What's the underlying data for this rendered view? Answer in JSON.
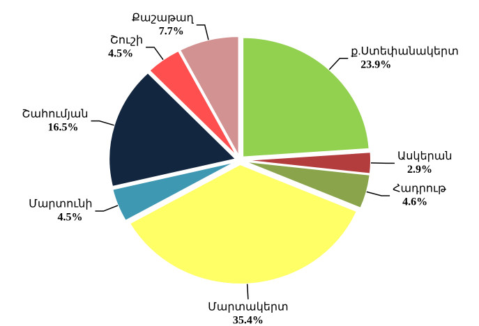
{
  "chart_data": {
    "type": "pie",
    "categories": [
      "ք.Ստեփանակերտ",
      "Ասկերան",
      "Հադրութ",
      "Մարտակերտ",
      "Մարտունի",
      "Շահումյան",
      "Շուշի",
      "Քաշաթաղ"
    ],
    "values": [
      23.9,
      2.9,
      4.6,
      35.4,
      4.5,
      16.5,
      4.5,
      7.7
    ],
    "value_labels": [
      "23.9%",
      "2.9%",
      "4.6%",
      "35.4%",
      "4.5%",
      "16.5%",
      "4.5%",
      "7.7%"
    ],
    "colors": [
      "#92d050",
      "#b33c3c",
      "#8aa44c",
      "#ffff66",
      "#3f98b2",
      "#13263f",
      "#ff4f4f",
      "#d39292"
    ]
  }
}
